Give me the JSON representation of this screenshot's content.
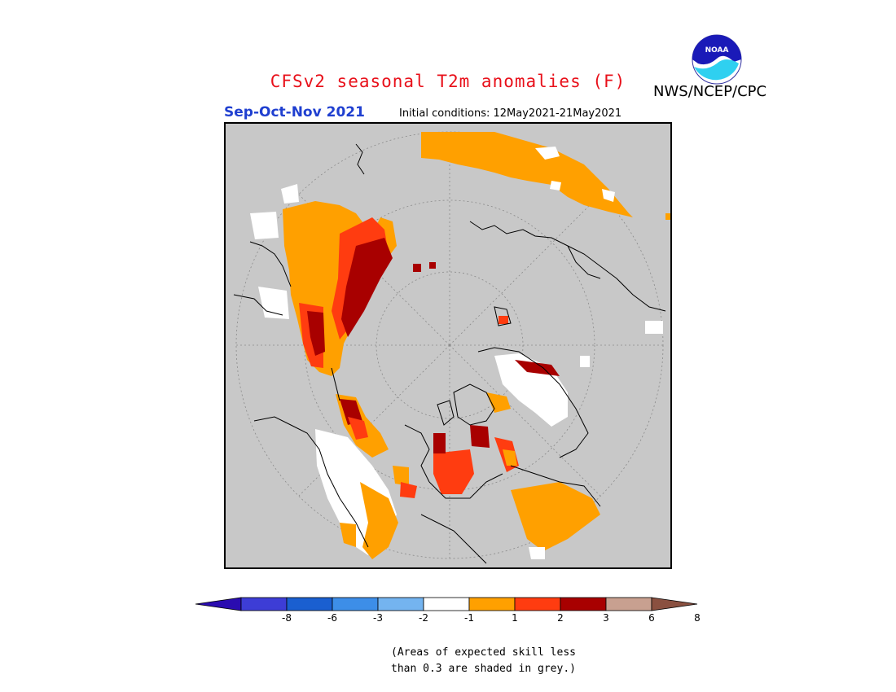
{
  "title": "CFSv2 seasonal T2m anomalies (F)",
  "agency": "NWS/NCEP/CPC",
  "season": "Sep-Oct-Nov 2021",
  "initial_conditions": "Initial conditions: 12May2021-21May2021",
  "logo": {
    "text": "NOAA",
    "icon": "noaa-logo-icon"
  },
  "legend": {
    "colors": [
      "#2a0cb0",
      "#3d3dd6",
      "#1a5fd0",
      "#3d8ee8",
      "#74b4f0",
      "#ffffff",
      "#ffa000",
      "#ff3c10",
      "#a80000",
      "#c8a090",
      "#8a5040"
    ],
    "ticks": [
      "-8",
      "-6",
      "-3",
      "-2",
      "-1",
      "1",
      "2",
      "3",
      "6",
      "8"
    ],
    "grey_color": "#c8c8c8"
  },
  "note": {
    "line1": "(Areas of expected skill less",
    "line2": "than 0.3 are shaded in grey.)"
  }
}
